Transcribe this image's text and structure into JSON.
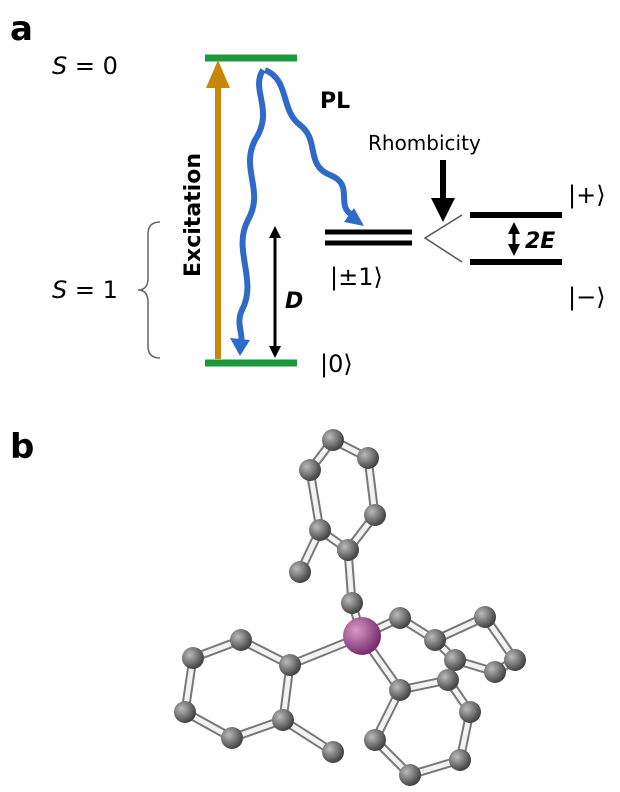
{
  "panel_a": {
    "label": "a",
    "s0": {
      "symbol": "S",
      "value": "= 0"
    },
    "s1": {
      "symbol": "S",
      "value": "= 1"
    },
    "excitation": "Excitation",
    "pl": "PL",
    "rhombicity": "Rhombicity",
    "d": "D",
    "two_e": "2E",
    "state_pm1": "|±1⟩",
    "state_0": "|0⟩",
    "state_plus": "|+⟩",
    "state_minus": "|−⟩"
  },
  "panel_b": {
    "label": "b"
  }
}
